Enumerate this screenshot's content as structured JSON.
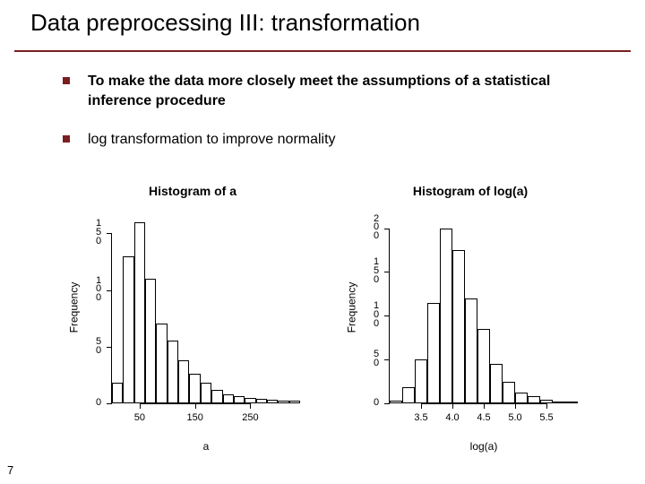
{
  "slide": {
    "title": "Data preprocessing III: transformation",
    "rule_color": "#7a1f1f",
    "bullet_color": "#7a1f1f",
    "page_number": "7",
    "bullets": [
      {
        "text": "To make the data more closely meet the assumptions of a statistical inference procedure",
        "bold": true
      },
      {
        "text": "log transformation to improve normality",
        "bold": false
      }
    ]
  },
  "chart_left": {
    "type": "histogram",
    "title": "Histogram of a",
    "xlabel": "a",
    "ylabel": "Frequency",
    "title_fontsize": 14,
    "label_fontsize": 12,
    "tick_fontsize": 11,
    "background_color": "#ffffff",
    "bar_border": "#000000",
    "bar_fill": "transparent",
    "ylim": [
      0,
      170
    ],
    "yticks": [
      0,
      50,
      100,
      150
    ],
    "xlim": [
      0,
      340
    ],
    "xticks": [
      50,
      150,
      250
    ],
    "bin_edges": [
      0,
      20,
      40,
      60,
      80,
      100,
      120,
      140,
      160,
      180,
      200,
      220,
      240,
      260,
      280,
      300,
      320,
      340
    ],
    "counts": [
      18,
      130,
      160,
      110,
      70,
      55,
      38,
      26,
      18,
      12,
      8,
      6,
      5,
      4,
      3,
      2,
      2
    ]
  },
  "chart_right": {
    "type": "histogram",
    "title": "Histogram of log(a)",
    "xlabel": "log(a)",
    "ylabel": "Frequency",
    "title_fontsize": 14,
    "label_fontsize": 12,
    "tick_fontsize": 11,
    "background_color": "#ffffff",
    "bar_border": "#000000",
    "bar_fill": "transparent",
    "ylim": [
      0,
      220
    ],
    "yticks": [
      0,
      50,
      100,
      150,
      200
    ],
    "xlim": [
      3.0,
      6.0
    ],
    "xticks": [
      3.5,
      4.0,
      4.5,
      5.0,
      5.5
    ],
    "bin_edges": [
      3.0,
      3.2,
      3.4,
      3.6,
      3.8,
      4.0,
      4.2,
      4.4,
      4.6,
      4.8,
      5.0,
      5.2,
      5.4,
      5.6,
      5.8,
      6.0
    ],
    "counts": [
      3,
      18,
      50,
      115,
      200,
      175,
      120,
      85,
      45,
      25,
      12,
      8,
      4,
      2,
      1
    ]
  }
}
